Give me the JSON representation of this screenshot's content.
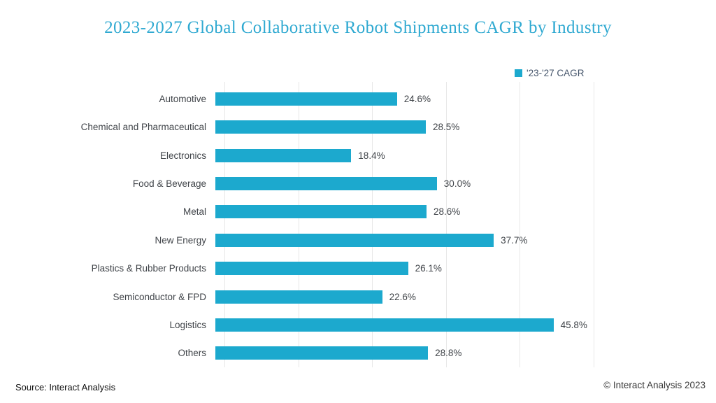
{
  "title": "2023-2027 Global Collaborative Robot Shipments CAGR by Industry",
  "legend": {
    "label": "'23-'27 CAGR"
  },
  "footer": {
    "source": "Source: Interact Analysis",
    "copyright": "© Interact Analysis 2023"
  },
  "colors": {
    "bar": "#1CA9CE",
    "title": "#2FA9D1",
    "label_text": "#404449",
    "legend_text": "#44546A",
    "gridline": "#E7E7E7",
    "footer_left": "#111111",
    "footer_right": "#3A3A3A"
  },
  "chart_data": {
    "type": "bar",
    "orientation": "horizontal",
    "title": "2023-2027 Global Collaborative Robot Shipments CAGR by Industry",
    "series_name": "'23-'27 CAGR",
    "categories": [
      "Automotive",
      "Chemical and Pharmaceutical",
      "Electronics",
      "Food & Beverage",
      "Metal",
      "New Energy",
      "Plastics & Rubber Products",
      "Semiconductor & FPD",
      "Logistics",
      "Others"
    ],
    "values": [
      24.6,
      28.5,
      18.4,
      30.0,
      28.6,
      37.7,
      26.1,
      22.6,
      45.8,
      28.8
    ],
    "labels": [
      "24.6%",
      "28.5%",
      "18.4%",
      "30.0%",
      "28.6%",
      "37.7%",
      "26.1%",
      "22.6%",
      "45.8%",
      "28.8%"
    ],
    "xlabel": "",
    "ylabel": "",
    "xlim": [
      0,
      50
    ],
    "gridline_step": 10,
    "grid": "vertical",
    "legend_position": "top-right"
  }
}
